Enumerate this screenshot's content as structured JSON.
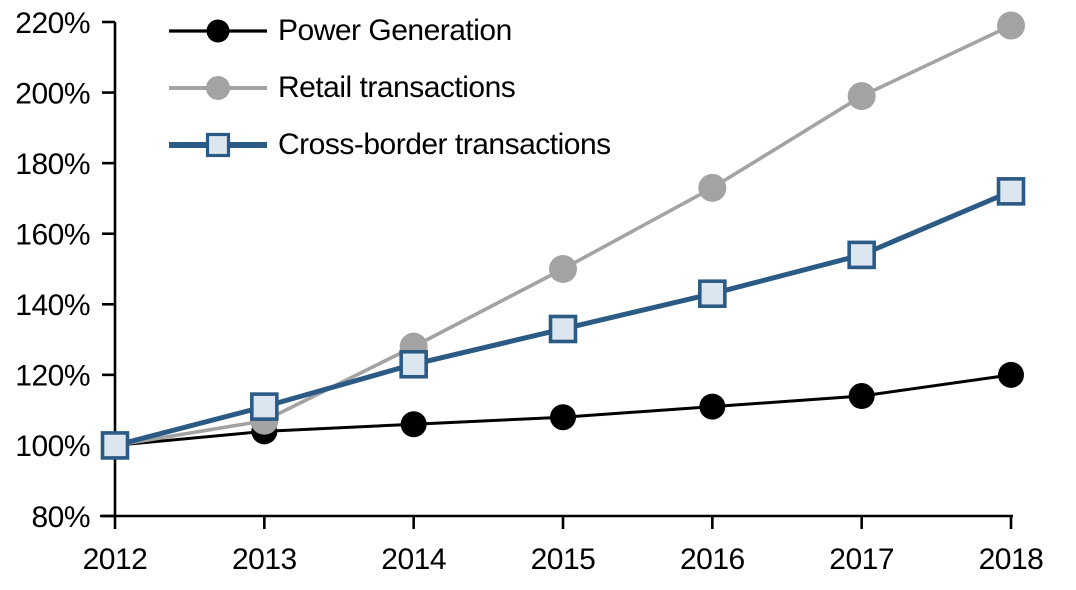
{
  "chart_data": {
    "type": "line",
    "title": "",
    "xlabel": "",
    "ylabel": "",
    "x": [
      2012,
      2013,
      2014,
      2015,
      2016,
      2017,
      2018
    ],
    "xlabels": [
      "2012",
      "2013",
      "2014",
      "2015",
      "2016",
      "2017",
      "2018"
    ],
    "series": [
      {
        "name": "Power Generation",
        "color": "#000000",
        "marker": "circle",
        "marker_fill": "#000000",
        "values": [
          100,
          104,
          106,
          108,
          111,
          114,
          120
        ]
      },
      {
        "name": "Retail transactions",
        "color": "#A3A3A3",
        "marker": "circle",
        "marker_fill": "#A3A3A3",
        "values": [
          100,
          107,
          128,
          150,
          173,
          199,
          219
        ]
      },
      {
        "name": "Cross-border transactions",
        "color": "#2B5A84",
        "marker": "square",
        "marker_fill": "#DCE6F1",
        "values": [
          100,
          111,
          123,
          133,
          143,
          154,
          172
        ]
      }
    ],
    "ylim": [
      80,
      220
    ],
    "ytick_step": 20,
    "ylabels": [
      "80%",
      "100%",
      "120%",
      "140%",
      "160%",
      "180%",
      "200%",
      "220%"
    ],
    "grid": false,
    "legend_position": "top-left"
  },
  "colors": {
    "background": "#FFFFFF",
    "axis": "#000000",
    "black_series": "#000000",
    "gray_series": "#A3A3A3",
    "blue_series": "#2B5A84",
    "blue_marker_fill": "#DCE6F1"
  }
}
